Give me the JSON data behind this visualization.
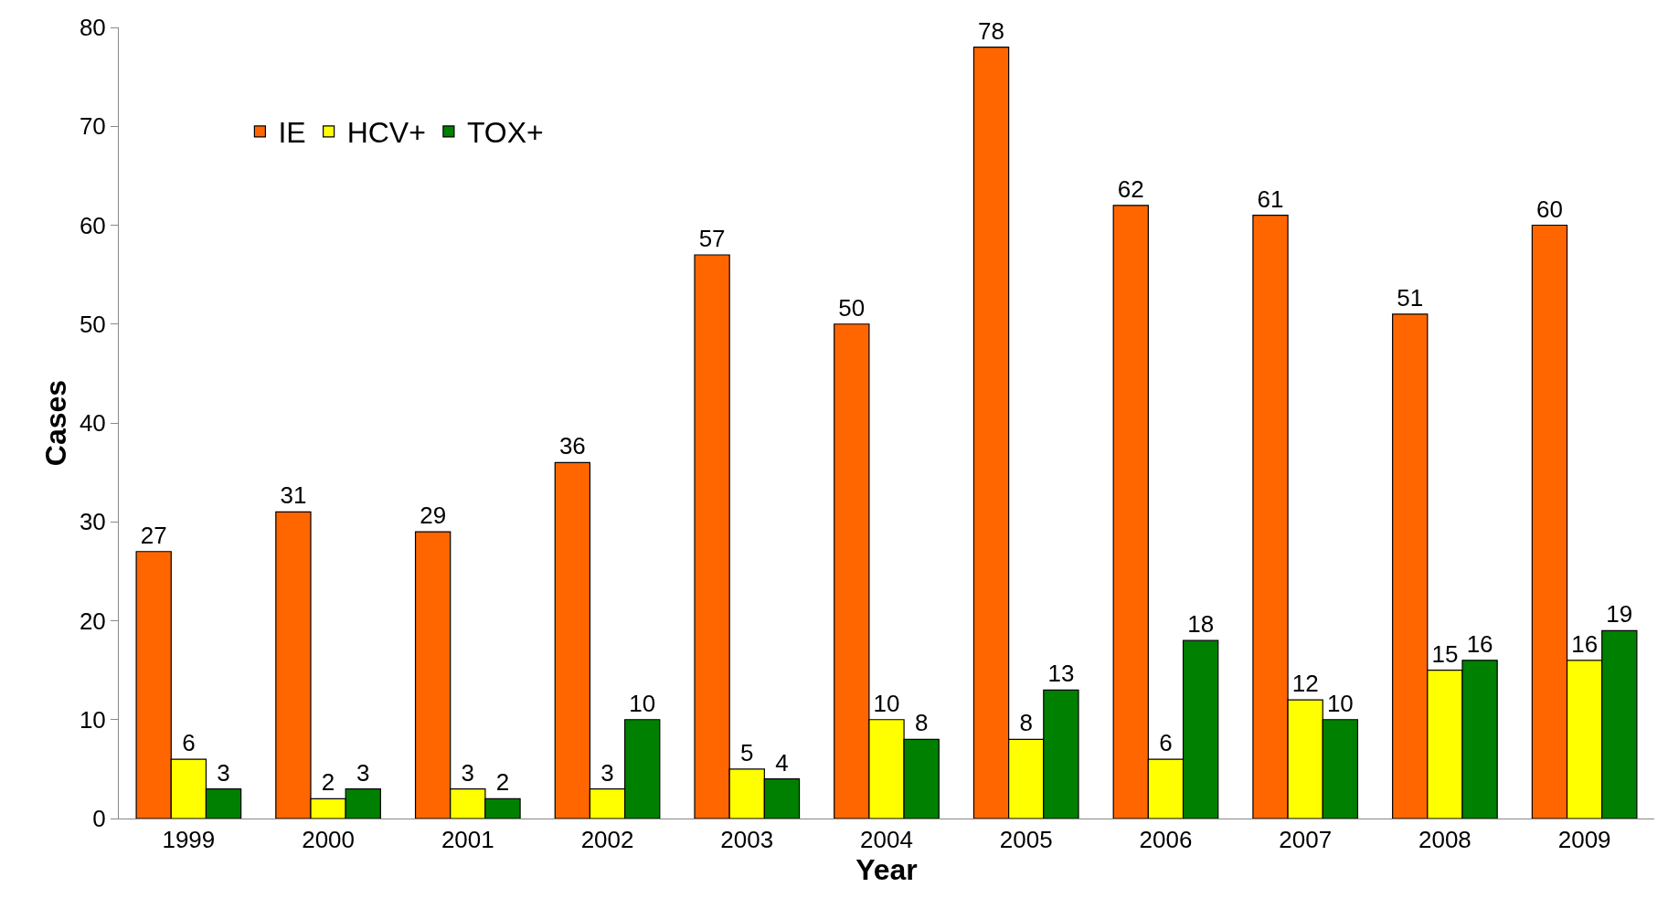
{
  "chart_data": {
    "type": "bar",
    "xlabel": "Year",
    "ylabel": "Cases",
    "categories": [
      "1999",
      "2000",
      "2001",
      "2002",
      "2003",
      "2004",
      "2005",
      "2006",
      "2007",
      "2008",
      "2009"
    ],
    "series": [
      {
        "name": "IE",
        "color": "#ff6600",
        "values": [
          27,
          31,
          29,
          36,
          57,
          50,
          78,
          62,
          61,
          51,
          60
        ]
      },
      {
        "name": "HCV+",
        "color": "#ffff00",
        "values": [
          6,
          2,
          3,
          3,
          5,
          10,
          8,
          6,
          12,
          15,
          16
        ]
      },
      {
        "name": "TOX+",
        "color": "#008000",
        "values": [
          3,
          3,
          2,
          10,
          4,
          8,
          13,
          18,
          10,
          16,
          19
        ]
      }
    ],
    "ylim": [
      0,
      80
    ],
    "yticks": [
      0,
      10,
      20,
      30,
      40,
      50,
      60,
      70,
      80
    ],
    "grid": false,
    "legend": "top left",
    "data_labels": true
  }
}
